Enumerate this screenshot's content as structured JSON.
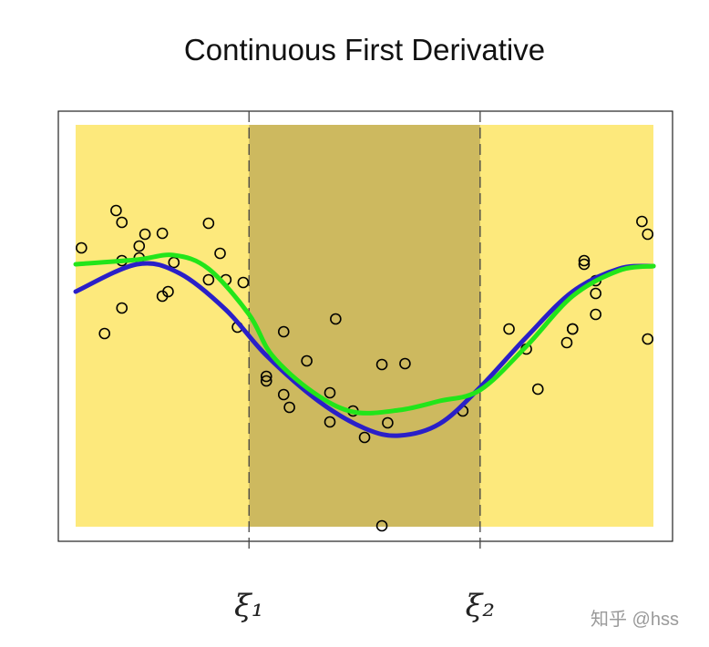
{
  "chart_data": {
    "type": "scatter",
    "title": "Continuous First Derivative",
    "xlim": [
      -0.03,
      1.033
    ],
    "ylim": [
      -0.16,
      4.56
    ],
    "xticks": [
      {
        "value": 0.3,
        "label": "ξ₁"
      },
      {
        "value": 0.7,
        "label": "ξ₂"
      }
    ],
    "point_color": "#000000",
    "x": [
      0.01,
      0.05,
      0.07,
      0.08,
      0.08,
      0.08,
      0.11,
      0.11,
      0.12,
      0.15,
      0.15,
      0.16,
      0.17,
      0.23,
      0.23,
      0.25,
      0.26,
      0.28,
      0.29,
      0.33,
      0.33,
      0.36,
      0.36,
      0.37,
      0.4,
      0.44,
      0.44,
      0.45,
      0.48,
      0.5,
      0.53,
      0.53,
      0.54,
      0.57,
      0.67,
      0.75,
      0.78,
      0.8,
      0.85,
      0.86,
      0.86,
      0.88,
      0.88,
      0.9,
      0.9,
      0.9,
      0.98,
      0.99,
      0.99
    ],
    "y": [
      3.06,
      2.12,
      3.47,
      3.34,
      2.92,
      2.4,
      3.08,
      2.95,
      3.21,
      2.53,
      3.22,
      2.58,
      2.9,
      3.33,
      2.71,
      3.0,
      2.71,
      2.19,
      2.68,
      1.6,
      1.65,
      2.14,
      1.45,
      1.31,
      1.82,
      1.15,
      1.47,
      2.28,
      1.27,
      0.98,
      0.01,
      1.78,
      1.14,
      1.79,
      1.27,
      2.17,
      1.95,
      1.51,
      2.02,
      2.17,
      2.17,
      2.92,
      2.88,
      2.7,
      2.56,
      2.33,
      3.35,
      3.21,
      2.06
    ],
    "series": [
      {
        "color": "#2a1fc8",
        "x": [
          0,
          0.106,
          0.18,
          0.26,
          0.33,
          0.42,
          0.5,
          0.56,
          0.63,
          0.7,
          0.78,
          0.86,
          0.94,
          1
        ],
        "values": [
          2.58,
          2.88,
          2.78,
          2.38,
          1.88,
          1.38,
          1.08,
          1.0,
          1.13,
          1.53,
          2.08,
          2.58,
          2.83,
          2.86
        ]
      },
      {
        "color": "#22e51a",
        "x": [
          0,
          0.106,
          0.17,
          0.23,
          0.3,
          0.34,
          0.41,
          0.48,
          0.56,
          0.63,
          0.7,
          0.78,
          0.86,
          0.94,
          1
        ],
        "values": [
          2.88,
          2.93,
          2.98,
          2.83,
          2.33,
          1.88,
          1.48,
          1.26,
          1.28,
          1.38,
          1.5,
          1.98,
          2.53,
          2.81,
          2.86
        ]
      }
    ]
  },
  "watermark": "知乎 @hss"
}
